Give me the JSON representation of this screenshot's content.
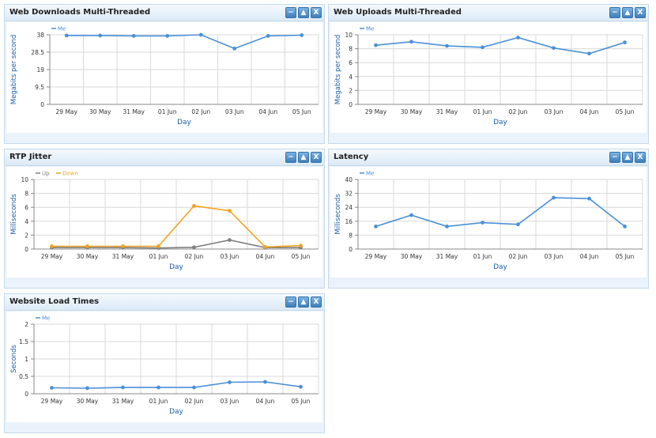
{
  "colors": {
    "accent": "#3b8fd9",
    "series_me": "#4a90d9",
    "series_up": "#7f7f7f",
    "series_down": "#f0a31e",
    "axis_text": "#1b5fa8",
    "grid": "#d9d9d9"
  },
  "panels": [
    {
      "title": "Web Downloads Multi-Threaded",
      "btn_minimize": "−",
      "btn_collapse": "▲",
      "btn_close": "X",
      "chart_data": {
        "type": "line",
        "categories": [
          "29 May",
          "30 May",
          "31 May",
          "01 Jun",
          "02 Jun",
          "03 Jun",
          "04 Jun",
          "05 Jun"
        ],
        "xlabel": "Day",
        "ylabel": "Megabits per second",
        "yticks": [
          "0",
          "9.5",
          "19",
          "28.5",
          "38"
        ],
        "ylim": [
          0,
          38
        ],
        "grid": true,
        "legend_position": "top-left",
        "series": [
          {
            "name": "Me",
            "color": "#4a90d9",
            "values": [
              37.6,
              37.6,
              37.4,
              37.4,
              38.0,
              30.5,
              37.4,
              37.8
            ]
          }
        ]
      }
    },
    {
      "title": "Web Uploads Multi-Threaded",
      "btn_minimize": "−",
      "btn_collapse": "▲",
      "btn_close": "X",
      "chart_data": {
        "type": "line",
        "categories": [
          "29 May",
          "30 May",
          "31 May",
          "01 Jun",
          "02 Jun",
          "03 Jun",
          "04 Jun",
          "05 Jun"
        ],
        "xlabel": "Day",
        "ylabel": "Megabits per second",
        "yticks": [
          "0",
          "2",
          "4",
          "6",
          "8",
          "10"
        ],
        "ylim": [
          0,
          10
        ],
        "grid": true,
        "legend_position": "top-left",
        "series": [
          {
            "name": "Me",
            "color": "#4a90d9",
            "values": [
              8.5,
              9.0,
              8.4,
              8.2,
              9.6,
              8.1,
              7.3,
              8.9
            ]
          }
        ]
      }
    },
    {
      "title": "RTP Jitter",
      "btn_minimize": "−",
      "btn_collapse": "▲",
      "btn_close": "X",
      "chart_data": {
        "type": "line",
        "categories": [
          "29 May",
          "30 May",
          "31 May",
          "01 Jun",
          "02 Jun",
          "03 Jun",
          "04 Jun",
          "05 Jun"
        ],
        "xlabel": "Day",
        "ylabel": "Milliseconds",
        "yticks": [
          "0",
          "2",
          "4",
          "6",
          "8",
          "10"
        ],
        "ylim": [
          0,
          10
        ],
        "grid": true,
        "legend_position": "top-left",
        "series": [
          {
            "name": "Up",
            "color": "#7f7f7f",
            "values": [
              0.2,
              0.2,
              0.2,
              0.15,
              0.25,
              1.3,
              0.2,
              0.2
            ]
          },
          {
            "name": "Down",
            "color": "#f0a31e",
            "values": [
              0.4,
              0.4,
              0.4,
              0.4,
              6.2,
              5.5,
              0.3,
              0.5
            ]
          }
        ]
      }
    },
    {
      "title": "Latency",
      "btn_minimize": "−",
      "btn_collapse": "▲",
      "btn_close": "X",
      "chart_data": {
        "type": "line",
        "categories": [
          "29 May",
          "30 May",
          "31 May",
          "01 Jun",
          "02 Jun",
          "03 Jun",
          "04 Jun",
          "05 Jun"
        ],
        "xlabel": "Day",
        "ylabel": "Milliseconds",
        "yticks": [
          "0",
          "8",
          "16",
          "24",
          "32",
          "40"
        ],
        "ylim": [
          0,
          40
        ],
        "grid": true,
        "legend_position": "top-left",
        "series": [
          {
            "name": "Me",
            "color": "#4a90d9",
            "values": [
              13,
              19.5,
              13,
              15.2,
              14.2,
              29.5,
              29,
              13
            ]
          }
        ]
      }
    },
    {
      "title": "Website Load Times",
      "btn_minimize": "−",
      "btn_collapse": "▲",
      "btn_close": "X",
      "chart_data": {
        "type": "line",
        "categories": [
          "29 May",
          "30 May",
          "31 May",
          "01 Jun",
          "02 Jun",
          "03 Jun",
          "04 Jun",
          "05 Jun"
        ],
        "xlabel": "Day",
        "ylabel": "Seconds",
        "yticks": [
          "0",
          "0.5",
          "1",
          "1.5",
          "2"
        ],
        "ylim": [
          0,
          2
        ],
        "grid": true,
        "legend_position": "top-left",
        "series": [
          {
            "name": "Me",
            "color": "#4a90d9",
            "values": [
              0.17,
              0.16,
              0.18,
              0.18,
              0.18,
              0.33,
              0.34,
              0.2
            ]
          }
        ]
      }
    }
  ]
}
